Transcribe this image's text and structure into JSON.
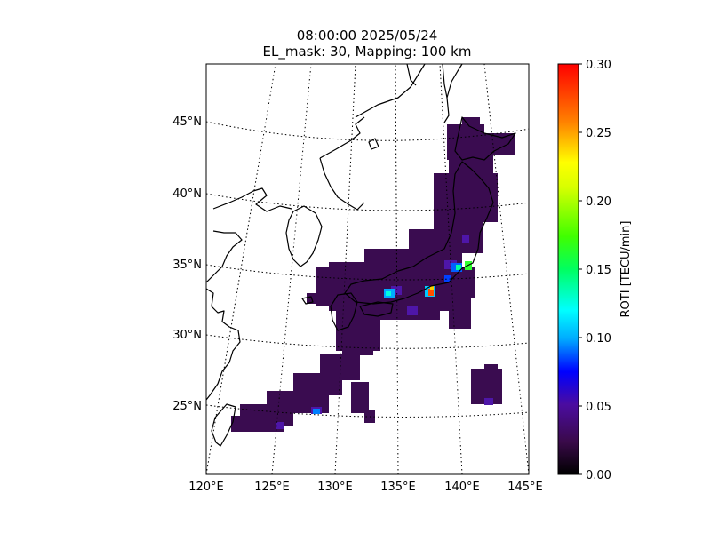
{
  "title_line1": "08:00:00 2025/05/24",
  "title_line2": "EL_mask: 30, Mapping: 100 km",
  "map": {
    "lon_range": [
      120,
      145
    ],
    "lat_range": [
      20,
      49
    ],
    "lon_ticks": [
      "120°E",
      "125°E",
      "130°E",
      "135°E",
      "140°E",
      "145°E"
    ],
    "lat_ticks": [
      "25°N",
      "30°N",
      "35°N",
      "40°N",
      "45°N"
    ],
    "graticule": "dotted"
  },
  "colorbar": {
    "label": "ROTI [TECU/min]",
    "min": 0.0,
    "max": 0.3,
    "ticks": [
      "0.00",
      "0.05",
      "0.10",
      "0.15",
      "0.20",
      "0.25",
      "0.30"
    ],
    "colormap": [
      "#000000",
      "#3a0a4a",
      "#4b0ca0",
      "#0000ff",
      "#00ffff",
      "#00ff00",
      "#ffff00",
      "#ff8000",
      "#ff0000"
    ]
  },
  "roti_notes": {
    "background_level": 0.03,
    "hotspots_tecu_per_min": [
      0.1,
      0.12,
      0.2,
      0.08
    ]
  }
}
